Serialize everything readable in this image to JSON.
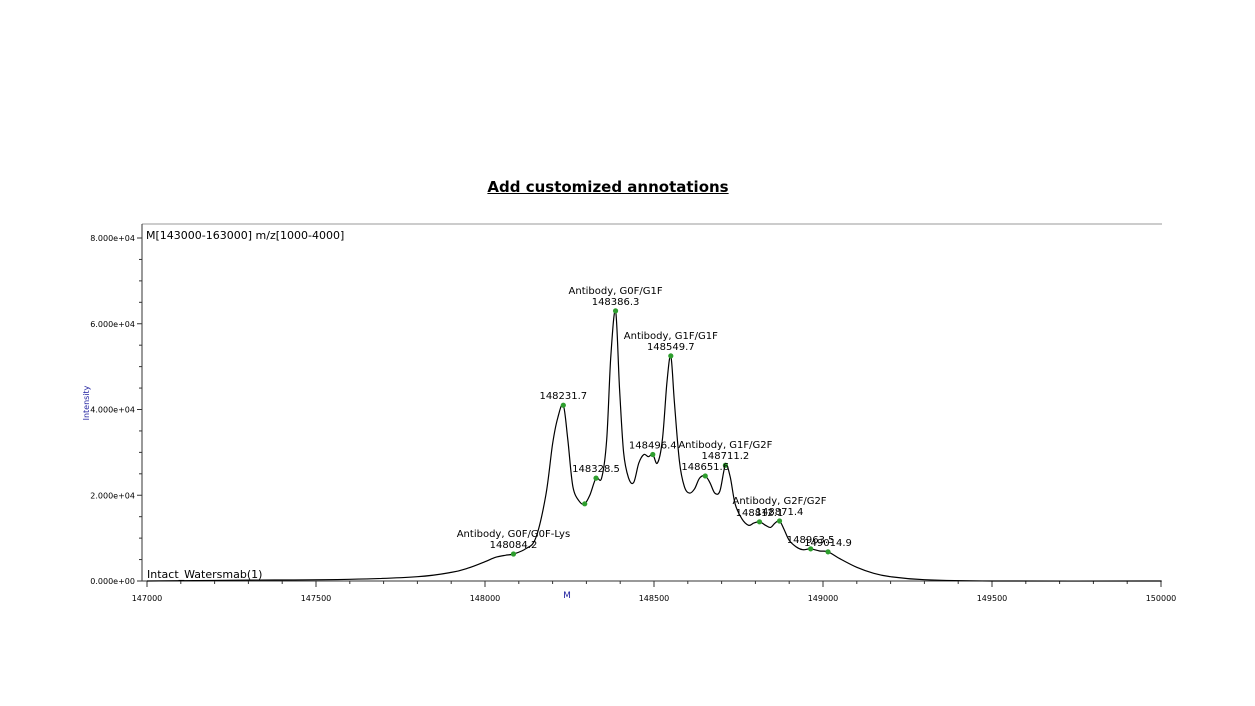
{
  "title": "Add customized annotations",
  "chart_data": {
    "type": "line",
    "range_label": "M[143000-163000] m/z[1000-4000]",
    "trace_label": "Intact_Watersmab(1)",
    "xlabel": "M",
    "ylabel": "Intensity",
    "xlim": [
      147000,
      150000
    ],
    "ylim": [
      0,
      80000
    ],
    "x_ticks": [
      147000,
      147500,
      148000,
      148500,
      149000,
      149500,
      150000
    ],
    "x_tick_labels": [
      "147000",
      "147500",
      "148000",
      "148500",
      "149000",
      "149500",
      "150000"
    ],
    "y_ticks": [
      0,
      20000,
      40000,
      60000,
      80000
    ],
    "y_tick_labels": [
      "0.000e+00",
      "2.000e+04",
      "4.000e+04",
      "6.000e+04",
      "8.000e+04"
    ],
    "colors": {
      "trace": "#000000",
      "peak_marker": "#2e9e2e",
      "axis_label": "#1f1f9f",
      "frame": "#888888"
    },
    "series": [
      {
        "x": [
          147000,
          147300,
          147600,
          147800,
          147900,
          147950,
          148000,
          148030,
          148060,
          148084.2,
          148120,
          148150,
          148180,
          148200,
          148215,
          148231.7,
          148245,
          148260,
          148280,
          148295,
          148310,
          148328.5,
          148345,
          148360,
          148372,
          148386.3,
          148398,
          148410,
          148425,
          148440,
          148455,
          148470,
          148483,
          148496.4,
          148510,
          148525,
          148538,
          148549.7,
          148560,
          148575,
          148590,
          148605,
          148620,
          148635,
          148651.6,
          148665,
          148680,
          148695,
          148711.2,
          148725,
          148740,
          148760,
          148780,
          148795,
          148812.1,
          148830,
          148845,
          148858,
          148871.4,
          148885,
          148900,
          148920,
          148940,
          148963.5,
          148990,
          149014.9,
          149050,
          149100,
          149150,
          149200,
          149300,
          149500,
          150000
        ],
        "y": [
          0,
          200,
          400,
          1000,
          2000,
          3000,
          4500,
          5500,
          6000,
          6300,
          7500,
          10000,
          20000,
          32000,
          38000,
          41000,
          33000,
          22000,
          18500,
          18000,
          20000,
          24000,
          24000,
          33000,
          52000,
          63000,
          45000,
          30000,
          24000,
          23000,
          27500,
          29500,
          29000,
          29500,
          27500,
          33000,
          46000,
          52500,
          42000,
          28000,
          22000,
          20500,
          21500,
          24000,
          24500,
          23000,
          20500,
          21000,
          27000,
          24500,
          18000,
          14500,
          13000,
          13500,
          13800,
          13000,
          12500,
          13500,
          14000,
          12000,
          9500,
          8000,
          7300,
          7500,
          7000,
          6800,
          5200,
          3200,
          1800,
          1000,
          300,
          0,
          0
        ]
      }
    ],
    "peaks": [
      {
        "mass": 148084.2,
        "intensity": 6300,
        "label": "148084.2",
        "annotation": "Antibody, G0F/G0F-Lys"
      },
      {
        "mass": 148231.7,
        "intensity": 41000,
        "label": "148231.7",
        "annotation": ""
      },
      {
        "mass": 148295,
        "intensity": 18000,
        "label": "",
        "annotation": ""
      },
      {
        "mass": 148328.5,
        "intensity": 24000,
        "label": "148328.5",
        "annotation": ""
      },
      {
        "mass": 148386.3,
        "intensity": 63000,
        "label": "148386.3",
        "annotation": "Antibody, G0F/G1F"
      },
      {
        "mass": 148496.4,
        "intensity": 29500,
        "label": "148496.4",
        "annotation": ""
      },
      {
        "mass": 148549.7,
        "intensity": 52500,
        "label": "148549.7",
        "annotation": "Antibody, G1F/G1F"
      },
      {
        "mass": 148651.6,
        "intensity": 24500,
        "label": "148651.6",
        "annotation": ""
      },
      {
        "mass": 148711.2,
        "intensity": 27000,
        "label": "148711.2",
        "annotation": "Antibody, G1F/G2F"
      },
      {
        "mass": 148812.1,
        "intensity": 13800,
        "label": "148812.1",
        "annotation": ""
      },
      {
        "mass": 148871.4,
        "intensity": 14000,
        "label": "148871.4",
        "annotation": "Antibody, G2F/G2F"
      },
      {
        "mass": 148963.5,
        "intensity": 7500,
        "label": "148963.5",
        "annotation": ""
      },
      {
        "mass": 149014.9,
        "intensity": 6800,
        "label": "149014.9",
        "annotation": ""
      }
    ]
  }
}
